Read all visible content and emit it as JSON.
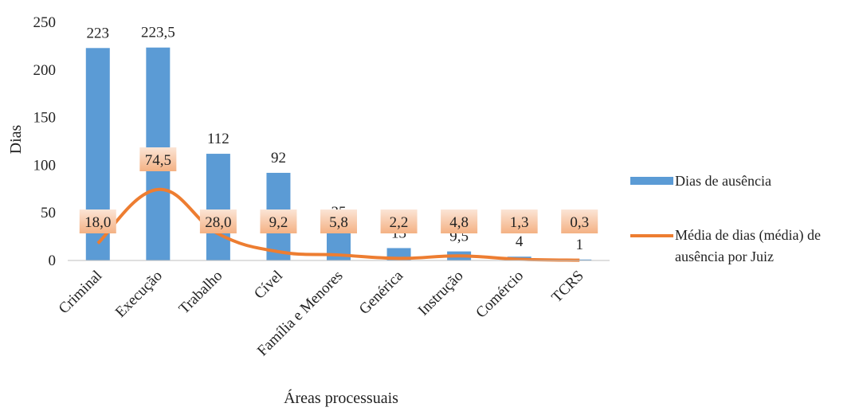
{
  "chart_data": {
    "type": "bar",
    "xlabel": "Áreas processuais",
    "ylabel": "Dias",
    "ylim": [
      0,
      250
    ],
    "yticks": [
      "0",
      "50",
      "100",
      "150",
      "200",
      "250"
    ],
    "categories": [
      "Criminal",
      "Execução",
      "Trabalho",
      "Cível",
      "Família e Menores",
      "Genérica",
      "Instrução",
      "Comércio",
      "TCRS"
    ],
    "series": [
      {
        "name": "Dias de ausência",
        "type": "bar",
        "color": "#5b9bd5",
        "values": [
          223,
          223.5,
          112,
          92,
          35,
          13,
          9.5,
          4,
          1
        ],
        "labels": [
          "223",
          "223,5",
          "112",
          "92",
          "35",
          "13",
          "9,5",
          "4",
          "1"
        ]
      },
      {
        "name": "Média de dias (média) de ausência por Juiz",
        "type": "line",
        "color": "#ed7d31",
        "values": [
          18.0,
          74.5,
          28.0,
          9.2,
          5.8,
          2.2,
          4.8,
          1.3,
          0.3
        ],
        "labels": [
          "18,0",
          "74,5",
          "28,0",
          "9,2",
          "5,8",
          "2,2",
          "4,8",
          "1,3",
          "0,3"
        ]
      }
    ],
    "legend_position": "right",
    "grid": false
  }
}
